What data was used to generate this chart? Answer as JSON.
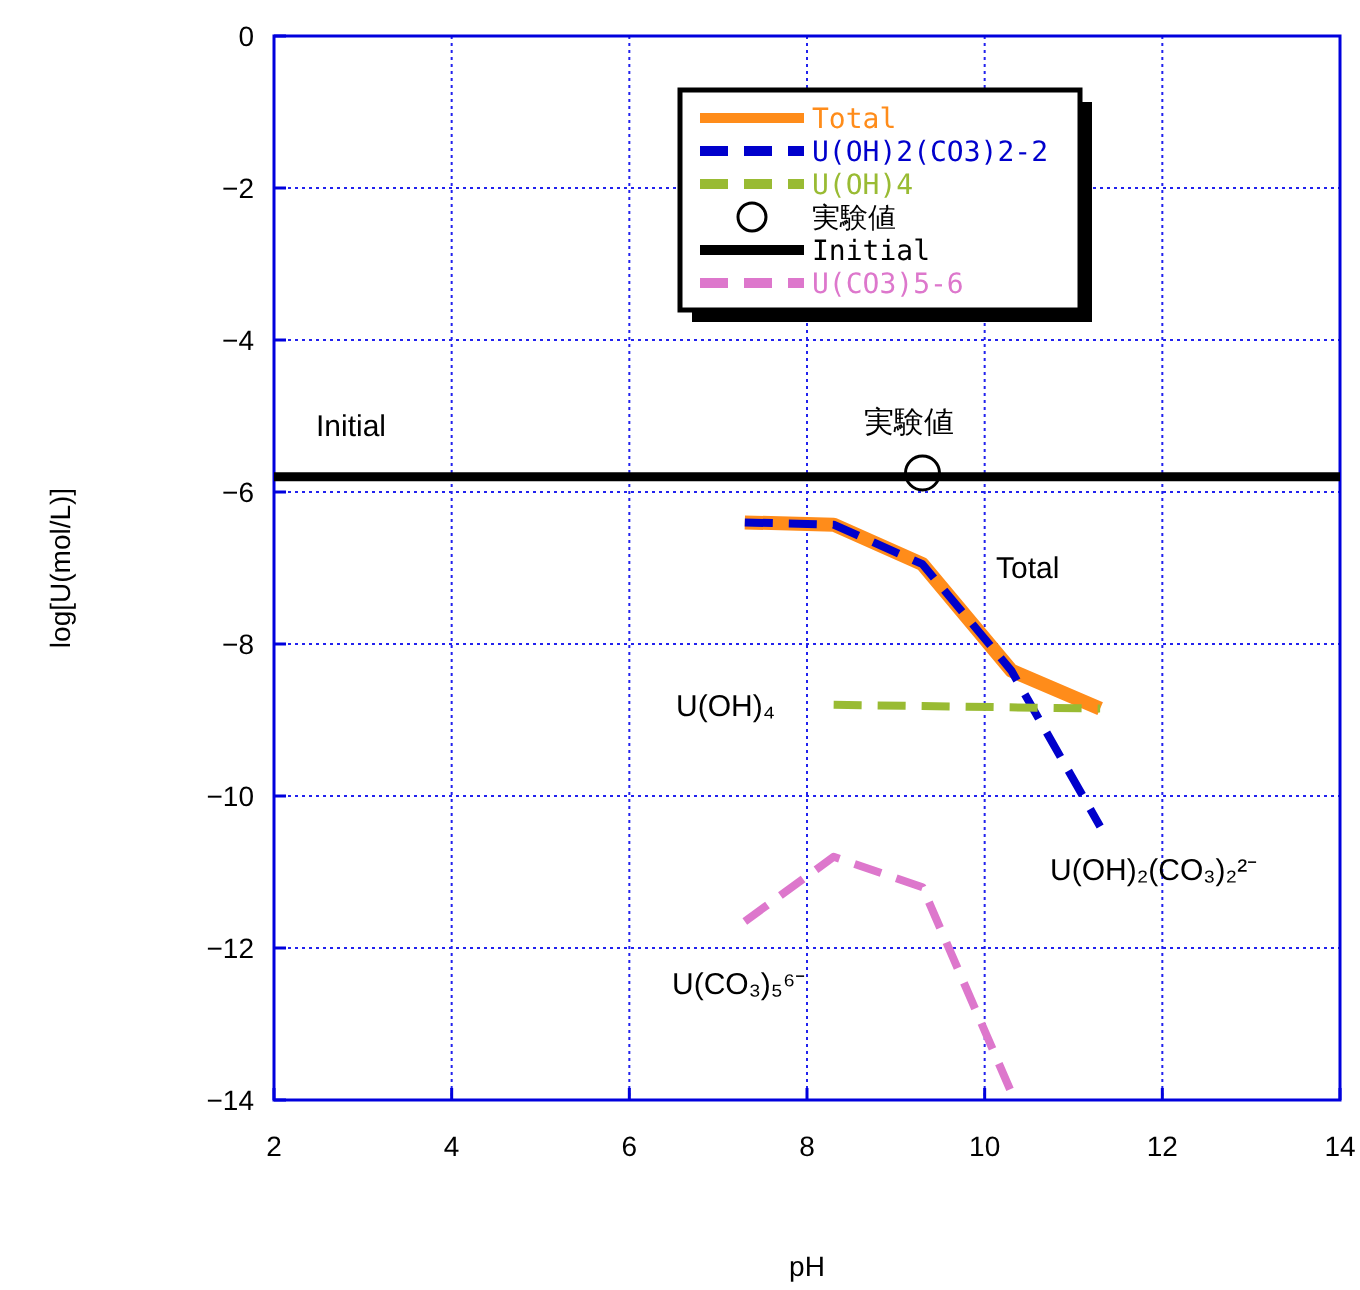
{
  "chart_data": {
    "type": "line",
    "xlabel": "pH",
    "ylabel": "log[U(mol/L)]",
    "xlim": [
      2,
      14
    ],
    "xticks": [
      2,
      4,
      6,
      8,
      10,
      12,
      14
    ],
    "ylim": [
      -14,
      0
    ],
    "yticks": [
      -14,
      -12,
      -10,
      -8,
      -6,
      -4,
      -2,
      0
    ],
    "grid": true,
    "legend": "top",
    "series": [
      {
        "name": "Total",
        "color": "#ff8c1a",
        "x": [
          7.3,
          8.3,
          9.3,
          10.3,
          11.3
        ],
        "values": [
          -6.4,
          -6.43,
          -6.95,
          -8.35,
          -8.85
        ],
        "line_style": "solid"
      },
      {
        "name": "U(OH)2(CO3)2-2",
        "color": "#0000cc",
        "x": [
          7.3,
          8.3,
          9.3,
          10.3,
          11.3
        ],
        "values": [
          -6.4,
          -6.43,
          -6.95,
          -8.35,
          -10.4
        ],
        "line_style": "dashed"
      },
      {
        "name": "U(OH)4",
        "color": "#99bb33",
        "x": [
          8.3,
          11.3
        ],
        "values": [
          -8.8,
          -8.85
        ],
        "line_style": "dashed"
      },
      {
        "name": "実験値",
        "type": "scatter",
        "color": "#000000",
        "x": [
          9.3
        ],
        "values": [
          -5.75
        ],
        "marker": "circle"
      },
      {
        "name": "Initial",
        "color": "#000000",
        "x": [
          2,
          14
        ],
        "values": [
          -5.8,
          -5.8
        ],
        "line_style": "solid"
      },
      {
        "name": "U(CO3)5-6",
        "color": "#dd77cc",
        "x": [
          7.3,
          8.3,
          9.3,
          10.3
        ],
        "values": [
          -11.65,
          -10.8,
          -11.2,
          -13.9
        ],
        "line_style": "dashed"
      }
    ],
    "annotations": [
      "Initial",
      "実験値",
      "Total",
      "U(OH)₄",
      "U(OH)₂(CO₃)₂²⁻",
      "U(CO₃)₅⁶⁻"
    ]
  }
}
